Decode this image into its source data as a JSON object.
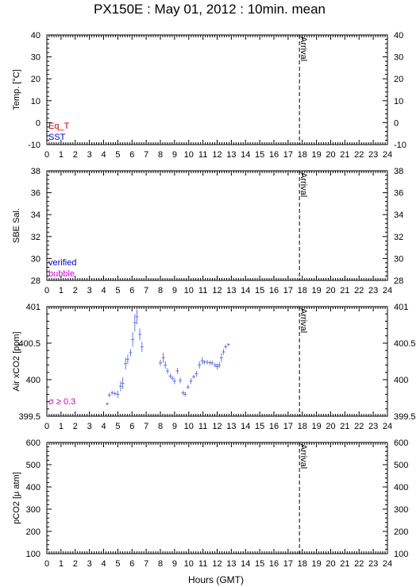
{
  "title": "PX150E : May 01, 2012 : 10min. mean",
  "x_axis_label": "Hours (GMT)",
  "arrival_label": "Arrival",
  "colors": {
    "eq_t": "#cc0000",
    "sst": "#0000cc",
    "verified": "#0000cc",
    "bubble": "#cc00cc",
    "data": "#6677dd",
    "sigma": "#cc00cc"
  },
  "chart_data": [
    {
      "type": "line",
      "ylabel": "Temp. [°C]",
      "xlim": [
        0,
        24
      ],
      "ylim": [
        -10,
        40
      ],
      "x_ticks": [
        0,
        1,
        2,
        3,
        4,
        5,
        6,
        7,
        8,
        9,
        10,
        11,
        12,
        13,
        14,
        15,
        16,
        17,
        18,
        19,
        20,
        21,
        22,
        23,
        24
      ],
      "y_ticks": [
        "40",
        "30",
        "20",
        "10",
        "0",
        "-10"
      ],
      "legend": [
        "Eq_T",
        "SST"
      ],
      "arrival_hour": 17.8,
      "series": []
    },
    {
      "type": "line",
      "ylabel": "SBE Sal.",
      "xlim": [
        0,
        24
      ],
      "ylim": [
        28,
        38
      ],
      "x_ticks": [
        0,
        1,
        2,
        3,
        4,
        5,
        6,
        7,
        8,
        9,
        10,
        11,
        12,
        13,
        14,
        15,
        16,
        17,
        18,
        19,
        20,
        21,
        22,
        23,
        24
      ],
      "y_ticks": [
        "38",
        "36",
        "34",
        "32",
        "30",
        "28"
      ],
      "legend": [
        "verified",
        "bubble"
      ],
      "arrival_hour": 17.8,
      "series": []
    },
    {
      "type": "scatter",
      "ylabel": "Air xCO2 [ppm]",
      "xlim": [
        0,
        24
      ],
      "ylim": [
        399.5,
        401
      ],
      "x_ticks": [
        0,
        1,
        2,
        3,
        4,
        5,
        6,
        7,
        8,
        9,
        10,
        11,
        12,
        13,
        14,
        15,
        16,
        17,
        18,
        19,
        20,
        21,
        22,
        23,
        24
      ],
      "y_ticks": [
        "401",
        "400.5",
        "400",
        "399.5"
      ],
      "annotation": "σ ≥ 0.3",
      "arrival_hour": 17.8,
      "x": [
        4.25,
        4.4,
        4.6,
        4.8,
        5.0,
        5.2,
        5.35,
        5.55,
        5.7,
        5.9,
        6.05,
        6.2,
        6.35,
        6.55,
        6.7,
        8.0,
        8.2,
        8.35,
        8.5,
        8.7,
        8.85,
        9.0,
        9.2,
        9.4,
        9.6,
        9.75,
        9.95,
        10.15,
        10.35,
        10.55,
        10.75,
        10.95,
        11.1,
        11.3,
        11.5,
        11.65,
        11.85,
        12.0,
        12.15,
        12.3,
        12.45,
        12.6,
        12.8
      ],
      "y": [
        399.67,
        399.79,
        399.82,
        399.81,
        399.8,
        399.91,
        399.95,
        400.22,
        400.28,
        400.37,
        400.55,
        400.78,
        400.86,
        400.62,
        400.45,
        400.23,
        400.3,
        400.2,
        400.12,
        400.05,
        400.02,
        399.98,
        400.12,
        399.99,
        399.82,
        399.8,
        399.9,
        399.98,
        400.04,
        400.08,
        400.2,
        400.26,
        400.24,
        400.24,
        400.23,
        400.23,
        400.2,
        400.18,
        400.2,
        400.3,
        400.38,
        400.45,
        400.48
      ],
      "err": [
        0.02,
        0.03,
        0.03,
        0.03,
        0.05,
        0.07,
        0.08,
        0.08,
        0.06,
        0.05,
        0.1,
        0.12,
        0.1,
        0.08,
        0.07,
        0.04,
        0.07,
        0.05,
        0.04,
        0.03,
        0.03,
        0.04,
        0.04,
        0.04,
        0.03,
        0.03,
        0.03,
        0.04,
        0.03,
        0.04,
        0.05,
        0.05,
        0.03,
        0.03,
        0.03,
        0.03,
        0.03,
        0.04,
        0.04,
        0.06,
        0.04,
        0.03,
        0.02
      ]
    },
    {
      "type": "line",
      "ylabel": "pCO2 [μ atm]",
      "xlim": [
        0,
        24
      ],
      "ylim": [
        100,
        600
      ],
      "x_ticks": [
        0,
        1,
        2,
        3,
        4,
        5,
        6,
        7,
        8,
        9,
        10,
        11,
        12,
        13,
        14,
        15,
        16,
        17,
        18,
        19,
        20,
        21,
        22,
        23,
        24
      ],
      "y_ticks": [
        "600",
        "500",
        "400",
        "300",
        "200",
        "100"
      ],
      "arrival_hour": 17.8,
      "series": []
    }
  ]
}
